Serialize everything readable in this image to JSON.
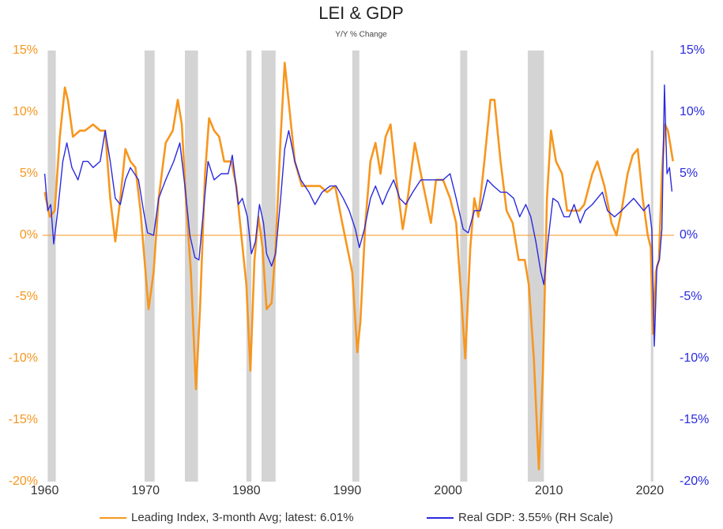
{
  "chart_data": {
    "type": "line",
    "title": "LEI & GDP",
    "subtitle": "Y/Y % Change",
    "xlim": [
      1959.8,
      2022.4
    ],
    "xticks": [
      1960,
      1970,
      1980,
      1990,
      2000,
      2010,
      2020
    ],
    "ylim": [
      -20,
      15
    ],
    "yticks": [
      {
        "value": -20,
        "label": "-20%"
      },
      {
        "value": -15,
        "label": "-15%"
      },
      {
        "value": -10,
        "label": "-10%"
      },
      {
        "value": -5,
        "label": "-5%"
      },
      {
        "value": 0,
        "label": "0%"
      },
      {
        "value": 5,
        "label": "5%"
      },
      {
        "value": 10,
        "label": "10%"
      },
      {
        "value": 15,
        "label": "15%"
      }
    ],
    "y2lim": [
      -20,
      15
    ],
    "y2ticks": [
      {
        "value": -20,
        "label": "-20%"
      },
      {
        "value": -15,
        "label": "-15%"
      },
      {
        "value": -10,
        "label": "-10%"
      },
      {
        "value": -5,
        "label": "-5%"
      },
      {
        "value": 0,
        "label": "0%"
      },
      {
        "value": 5,
        "label": "5%"
      },
      {
        "value": 10,
        "label": "10%"
      },
      {
        "value": 15,
        "label": "15%"
      }
    ],
    "recessions": [
      [
        1960.3,
        1961.1
      ],
      [
        1969.9,
        1970.9
      ],
      [
        1973.9,
        1975.2
      ],
      [
        1980.0,
        1980.5
      ],
      [
        1981.5,
        1982.9
      ],
      [
        1990.5,
        1991.2
      ],
      [
        2001.2,
        2001.9
      ],
      [
        2007.9,
        2009.5
      ],
      [
        2020.1,
        2020.35
      ]
    ],
    "recession_color": "#d4d4d4",
    "series": [
      {
        "name": "Leading Index, 3-month Avg; latest: 6.01%",
        "color": "#f7961e",
        "axis": "y",
        "x": [
          1960.0,
          1960.5,
          1961.0,
          1961.5,
          1962.0,
          1962.3,
          1962.8,
          1963.5,
          1964.0,
          1964.8,
          1965.5,
          1966.0,
          1966.5,
          1967.0,
          1967.5,
          1968.0,
          1968.5,
          1969.0,
          1969.5,
          1970.0,
          1970.3,
          1970.8,
          1971.3,
          1972.0,
          1972.7,
          1973.2,
          1973.6,
          1974.0,
          1974.5,
          1975.0,
          1975.4,
          1975.9,
          1976.3,
          1976.8,
          1977.3,
          1977.8,
          1978.5,
          1979.0,
          1979.5,
          1980.0,
          1980.4,
          1980.8,
          1981.2,
          1981.6,
          1982.0,
          1982.5,
          1982.9,
          1983.4,
          1983.8,
          1984.3,
          1984.8,
          1985.5,
          1986.5,
          1987.3,
          1988.0,
          1988.8,
          1989.5,
          1990.0,
          1990.5,
          1991.0,
          1991.3,
          1991.8,
          1992.3,
          1992.8,
          1993.3,
          1993.8,
          1994.3,
          1994.8,
          1995.5,
          1996.0,
          1996.7,
          1997.3,
          1997.8,
          1998.3,
          1998.8,
          1999.5,
          2000.2,
          2000.8,
          2001.3,
          2001.7,
          2002.2,
          2002.6,
          2003.0,
          2003.6,
          2004.2,
          2004.6,
          2005.2,
          2005.8,
          2006.4,
          2007.0,
          2007.6,
          2008.0,
          2008.5,
          2009.0,
          2009.4,
          2009.8,
          2010.2,
          2010.7,
          2011.3,
          2011.8,
          2012.5,
          2013.0,
          2013.5,
          2014.3,
          2014.8,
          2015.5,
          2016.2,
          2016.7,
          2017.2,
          2017.8,
          2018.3,
          2018.8,
          2019.3,
          2019.8,
          2020.1,
          2020.3,
          2020.6,
          2020.9,
          2021.2,
          2021.5,
          2021.8,
          2022.1,
          2022.3
        ],
        "values": [
          3.5,
          1.5,
          2,
          8,
          12,
          11,
          8,
          8.5,
          8.5,
          9,
          8.5,
          8.5,
          3,
          -0.5,
          3,
          7,
          6,
          5.5,
          2,
          -3,
          -6,
          -3,
          3,
          7.5,
          8.5,
          11,
          9,
          3,
          -3,
          -12.5,
          -6,
          5,
          9.5,
          8.5,
          8,
          6,
          6,
          4,
          0,
          -4,
          -11,
          -2,
          1.5,
          -1,
          -6,
          -5.5,
          -1,
          8,
          14,
          10,
          6,
          4,
          4,
          4,
          3.5,
          4,
          1,
          -1,
          -3,
          -9.5,
          -7,
          1,
          6,
          7.5,
          5,
          8,
          9,
          5,
          0.5,
          3,
          7.5,
          5,
          3,
          1,
          4.5,
          4.5,
          3,
          1,
          -5,
          -10,
          -1,
          3,
          1.5,
          6,
          11,
          11,
          6,
          2,
          1,
          -2,
          -2,
          -4,
          -10,
          -19,
          -11,
          3,
          8.5,
          6,
          5,
          2,
          2,
          2,
          2.5,
          5,
          6,
          4,
          1,
          0,
          2,
          5,
          6.5,
          7,
          3,
          0,
          -1,
          -8,
          -3,
          -2,
          5,
          9,
          8.5,
          7,
          6.01
        ]
      },
      {
        "name": "Real GDP: 3.55% (RH Scale)",
        "color": "#2a2ae0",
        "axis": "y2",
        "x": [
          1960.0,
          1960.3,
          1960.6,
          1960.9,
          1961.3,
          1961.8,
          1962.2,
          1962.7,
          1963.3,
          1963.8,
          1964.3,
          1964.8,
          1965.5,
          1966.0,
          1966.5,
          1967.0,
          1967.5,
          1968.0,
          1968.5,
          1969.3,
          1969.8,
          1970.2,
          1970.8,
          1971.3,
          1972.0,
          1972.8,
          1973.4,
          1973.9,
          1974.4,
          1974.9,
          1975.3,
          1975.8,
          1976.2,
          1976.8,
          1977.5,
          1978.2,
          1978.6,
          1979.2,
          1979.6,
          1980.1,
          1980.5,
          1980.9,
          1981.3,
          1981.7,
          1982.0,
          1982.5,
          1982.9,
          1983.4,
          1983.8,
          1984.2,
          1984.8,
          1985.4,
          1986.2,
          1986.8,
          1987.5,
          1988.3,
          1988.9,
          1989.6,
          1990.2,
          1990.8,
          1991.2,
          1991.7,
          1992.3,
          1992.8,
          1993.5,
          1994.0,
          1994.6,
          1995.2,
          1995.8,
          1996.5,
          1997.3,
          1998.0,
          1998.8,
          1999.5,
          2000.2,
          2000.8,
          2001.5,
          2002.0,
          2002.6,
          2003.2,
          2003.9,
          2004.5,
          2005.2,
          2005.8,
          2006.5,
          2007.1,
          2007.7,
          2008.2,
          2008.7,
          2009.2,
          2009.5,
          2009.9,
          2010.4,
          2010.9,
          2011.5,
          2012.0,
          2012.5,
          2013.1,
          2013.6,
          2014.3,
          2014.8,
          2015.3,
          2015.8,
          2016.5,
          2017.2,
          2017.8,
          2018.4,
          2018.9,
          2019.4,
          2019.9,
          2020.2,
          2020.45,
          2020.7,
          2020.95,
          2021.2,
          2021.45,
          2021.7,
          2021.95,
          2022.2
        ],
        "values": [
          5,
          2,
          2.5,
          -0.7,
          2,
          6,
          7.5,
          5.5,
          4.5,
          6,
          6,
          5.5,
          6,
          8.5,
          6,
          3,
          2.5,
          4.5,
          5.5,
          4.5,
          2,
          0.2,
          0,
          3,
          4.5,
          6,
          7.5,
          4,
          0,
          -1.8,
          -2,
          2.5,
          6,
          4.5,
          5,
          5,
          6.5,
          2.5,
          3,
          1.5,
          -1.5,
          -0.5,
          2.5,
          1,
          -1.5,
          -2.5,
          -1.5,
          3,
          7,
          8.5,
          6,
          4.5,
          3.5,
          2.5,
          3.5,
          4,
          4,
          3,
          2,
          0.5,
          -1,
          0.5,
          3,
          4,
          2.5,
          3.5,
          4.5,
          3,
          2.5,
          3.5,
          4.5,
          4.5,
          4.5,
          4.5,
          5,
          3,
          0.5,
          0.2,
          2,
          2,
          4.5,
          4,
          3.5,
          3.5,
          3,
          1.5,
          2.5,
          1.5,
          -0.5,
          -3,
          -4,
          -0.5,
          3,
          2.7,
          1.5,
          1.5,
          2.5,
          1,
          2,
          2.5,
          3,
          3.5,
          2,
          1.5,
          2,
          2.5,
          3,
          2.5,
          2,
          2.5,
          0.5,
          -9,
          -2.5,
          -2,
          0.5,
          12.2,
          5,
          5.5,
          3.55
        ]
      }
    ]
  }
}
